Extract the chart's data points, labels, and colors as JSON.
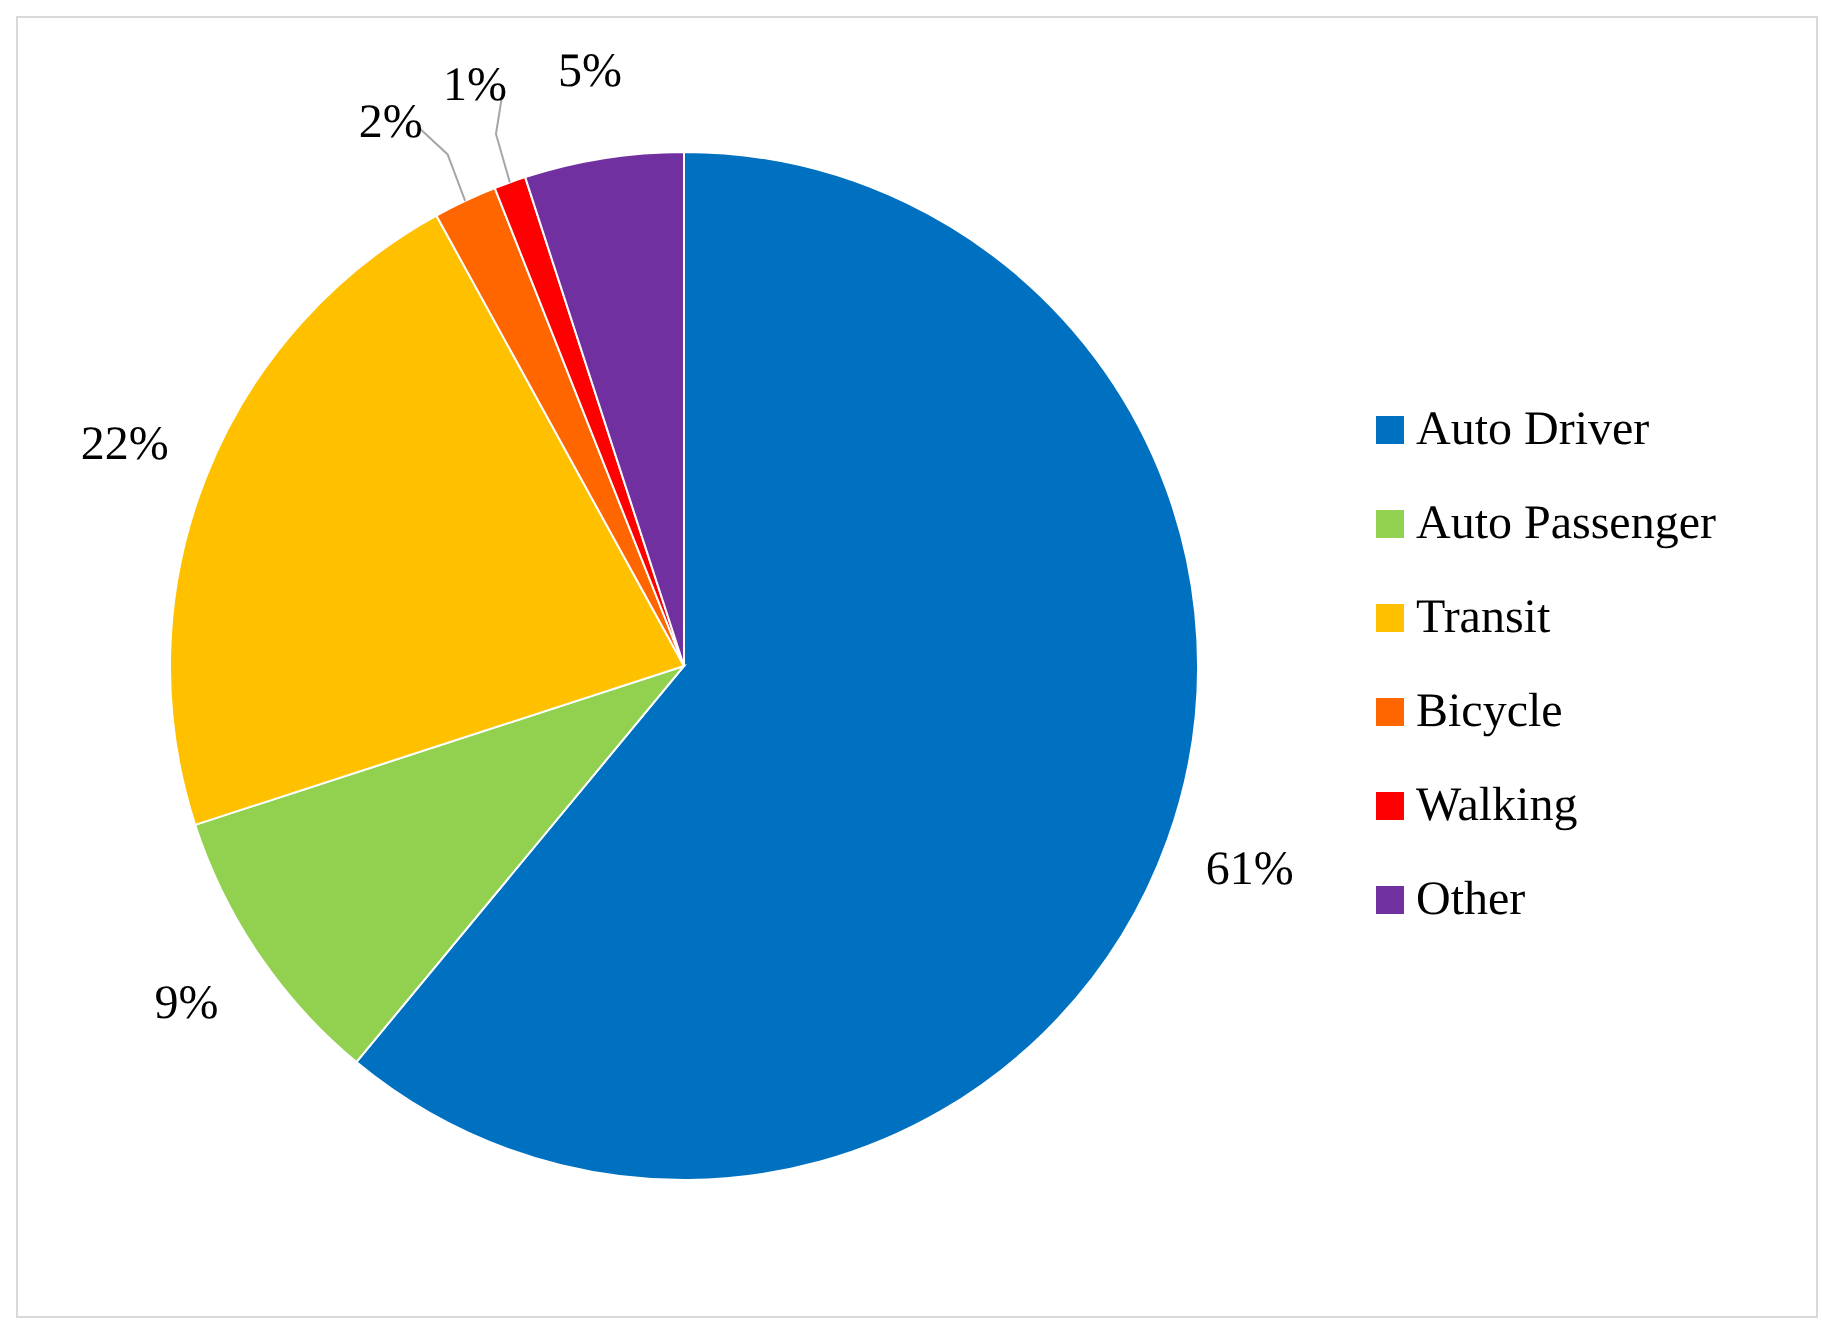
{
  "chart_data": {
    "type": "pie",
    "categories": [
      "Auto Driver",
      "Auto Passenger",
      "Transit",
      "Bicycle",
      "Walking",
      "Other"
    ],
    "values": [
      61,
      9,
      22,
      2,
      1,
      5
    ],
    "colors": [
      "#0070c0",
      "#92d050",
      "#ffc000",
      "#ff6600",
      "#ff0000",
      "#7030a0"
    ],
    "value_labels": [
      "61%",
      "9%",
      "22%",
      "2%",
      "1%",
      "5%"
    ],
    "legend": "right"
  }
}
